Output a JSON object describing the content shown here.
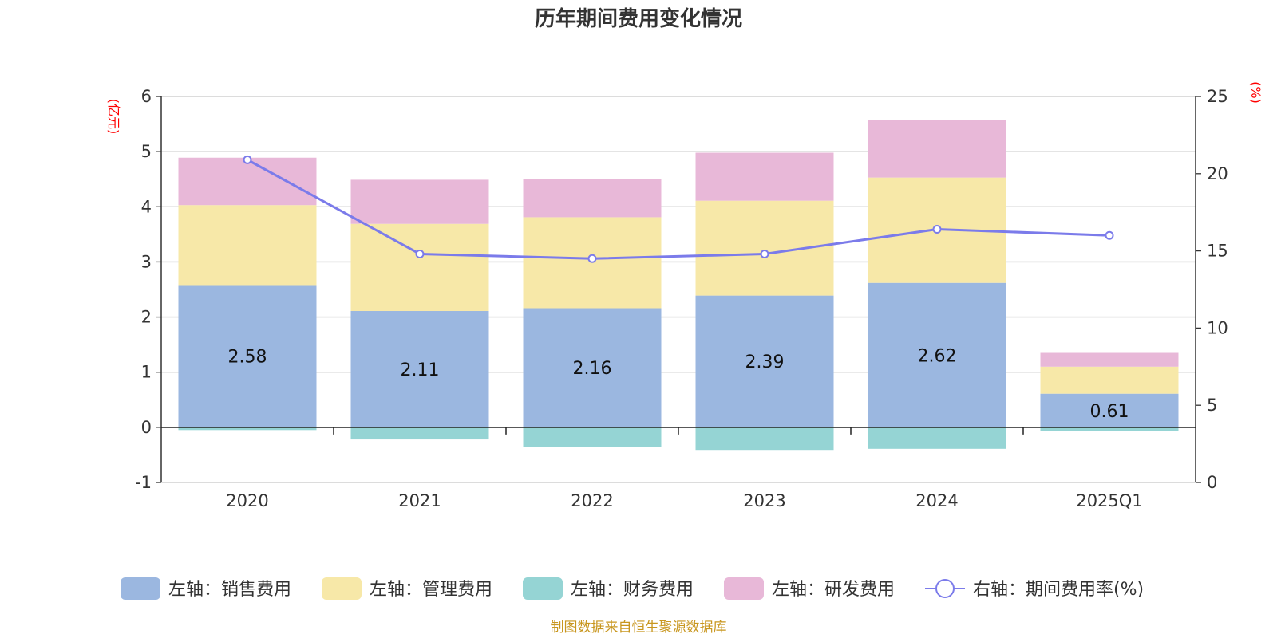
{
  "chart_data": {
    "type": "bar",
    "title": "历年期间费用变化情况",
    "categories": [
      "2020",
      "2021",
      "2022",
      "2023",
      "2024",
      "2025Q1"
    ],
    "left_axis": {
      "unit": "(亿元)",
      "ylim": [
        -1,
        6
      ],
      "ticks": [
        "-1",
        "0",
        "1",
        "2",
        "3",
        "4",
        "5",
        "6"
      ]
    },
    "right_axis": {
      "unit": "(%)",
      "ylim": [
        0,
        25
      ],
      "ticks": [
        "0",
        "5",
        "10",
        "15",
        "20",
        "25"
      ]
    },
    "series": [
      {
        "name": "左轴：销售费用",
        "kind": "bar",
        "axis": "left",
        "color": "#9bb7e0",
        "values": [
          2.58,
          2.11,
          2.16,
          2.39,
          2.62,
          0.61
        ],
        "labels": [
          "2.58",
          "2.11",
          "2.16",
          "2.39",
          "2.62",
          "0.61"
        ]
      },
      {
        "name": "左轴：管理费用",
        "kind": "bar",
        "axis": "left",
        "color": "#f7e8a8",
        "values": [
          1.45,
          1.58,
          1.65,
          1.72,
          1.91,
          0.49
        ]
      },
      {
        "name": "左轴：财务费用",
        "kind": "bar",
        "axis": "left",
        "color": "#95d4d4",
        "values": [
          -0.05,
          -0.22,
          -0.36,
          -0.41,
          -0.39,
          -0.07
        ]
      },
      {
        "name": "左轴：研发费用",
        "kind": "bar",
        "axis": "left",
        "color": "#e8b8d8",
        "values": [
          0.86,
          0.8,
          0.7,
          0.87,
          1.04,
          0.25
        ]
      },
      {
        "name": "右轴：期间费用率(%)",
        "kind": "line",
        "axis": "right",
        "color": "#7b7bea",
        "values": [
          20.9,
          14.8,
          14.5,
          14.8,
          16.4,
          16.0
        ]
      }
    ],
    "grid": true,
    "legend_position": "bottom"
  },
  "source_note": "制图数据来自恒生聚源数据库"
}
